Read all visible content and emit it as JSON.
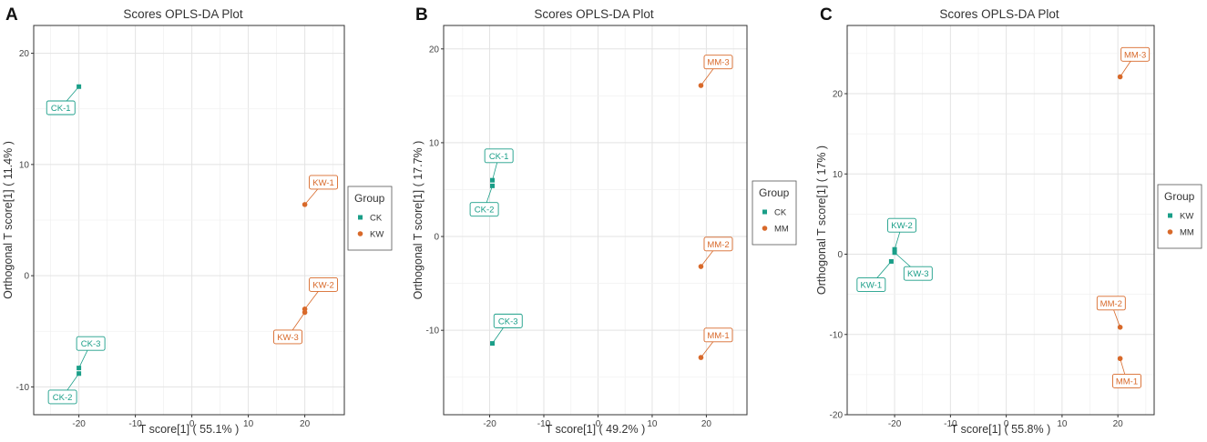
{
  "colors": {
    "CK": "#1a9e88",
    "KW_orange": "#d8692a",
    "MM": "#d8692a",
    "KW_teal": "#1a9e88",
    "grid": "#e6e6e6",
    "border": "#333333",
    "text": "#333333",
    "axis_text": "#444444"
  },
  "chart_data": [
    {
      "type": "scatter",
      "panel_label": "A",
      "title": "Scores OPLS-DA Plot",
      "xlabel": "T score[1] ( 55.1% )",
      "ylabel": "Orthogonal T score[1] ( 11.4% )",
      "xlim": [
        -28,
        27
      ],
      "ylim": [
        -12.5,
        22.5
      ],
      "xticks": [
        -20,
        -10,
        0,
        10,
        20
      ],
      "yticks": [
        -10,
        0,
        10,
        20
      ],
      "legend_title": "Group",
      "legend": [
        {
          "name": "CK",
          "color": "#1a9e88",
          "shape": "square"
        },
        {
          "name": "KW",
          "color": "#d8692a",
          "shape": "circle"
        }
      ],
      "points": [
        {
          "label": "CK-1",
          "group": "CK",
          "x": -20.0,
          "y": 17.0,
          "lx": -23.2,
          "ly": 15.1
        },
        {
          "label": "CK-2",
          "group": "CK",
          "x": -20.0,
          "y": -8.8,
          "lx": -22.9,
          "ly": -10.9
        },
        {
          "label": "CK-3",
          "group": "CK",
          "x": -20.0,
          "y": -8.3,
          "lx": -17.9,
          "ly": -6.1
        },
        {
          "label": "KW-1",
          "group": "KW",
          "x": 20.0,
          "y": 6.4,
          "lx": 23.3,
          "ly": 8.4
        },
        {
          "label": "KW-2",
          "group": "KW",
          "x": 20.0,
          "y": -3.0,
          "lx": 23.3,
          "ly": -0.8
        },
        {
          "label": "KW-3",
          "group": "KW",
          "x": 20.0,
          "y": -3.3,
          "lx": 17.0,
          "ly": -5.5
        }
      ]
    },
    {
      "type": "scatter",
      "panel_label": "B",
      "title": "Scores OPLS-DA Plot",
      "xlabel": "T score[1] ( 49.2% )",
      "ylabel": "Orthogonal T score[1] ( 17.7% )",
      "xlim": [
        -28.5,
        27.5
      ],
      "ylim": [
        -19,
        22.5
      ],
      "xticks": [
        -20,
        -10,
        0,
        10,
        20
      ],
      "yticks": [
        -10,
        0,
        10,
        20
      ],
      "legend_title": "Group",
      "legend": [
        {
          "name": "CK",
          "color": "#1a9e88",
          "shape": "square"
        },
        {
          "name": "MM",
          "color": "#d8692a",
          "shape": "circle"
        }
      ],
      "points": [
        {
          "label": "CK-1",
          "group": "CK",
          "x": -19.5,
          "y": 6.0,
          "lx": -18.3,
          "ly": 8.6
        },
        {
          "label": "CK-2",
          "group": "CK",
          "x": -19.5,
          "y": 5.4,
          "lx": -21.0,
          "ly": 2.9
        },
        {
          "label": "CK-3",
          "group": "CK",
          "x": -19.5,
          "y": -11.4,
          "lx": -16.6,
          "ly": -9.0
        },
        {
          "label": "MM-1",
          "group": "MM",
          "x": 19.0,
          "y": -12.9,
          "lx": 22.2,
          "ly": -10.5
        },
        {
          "label": "MM-2",
          "group": "MM",
          "x": 19.0,
          "y": -3.2,
          "lx": 22.2,
          "ly": -0.8
        },
        {
          "label": "MM-3",
          "group": "MM",
          "x": 19.0,
          "y": 16.1,
          "lx": 22.2,
          "ly": 18.6
        }
      ]
    },
    {
      "type": "scatter",
      "panel_label": "C",
      "title": "Scores OPLS-DA Plot",
      "xlabel": "T score[1] ( 55.8% )",
      "ylabel": "Orthogonal T score[1] ( 17% )",
      "xlim": [
        -28.5,
        26.5
      ],
      "ylim": [
        -20,
        28.5
      ],
      "xticks": [
        -20,
        -10,
        0,
        10,
        20
      ],
      "yticks": [
        -20,
        -10,
        0,
        10,
        20
      ],
      "legend_title": "Group",
      "legend": [
        {
          "name": "KW",
          "color": "#1a9e88",
          "shape": "square"
        },
        {
          "name": "MM",
          "color": "#d8692a",
          "shape": "circle"
        }
      ],
      "points": [
        {
          "label": "KW-1",
          "group": "KW",
          "x": -20.6,
          "y": -0.9,
          "lx": -24.2,
          "ly": -3.8
        },
        {
          "label": "KW-2",
          "group": "KW",
          "x": -20.0,
          "y": 0.6,
          "lx": -18.7,
          "ly": 3.6
        },
        {
          "label": "KW-3",
          "group": "KW",
          "x": -20.0,
          "y": 0.2,
          "lx": -15.8,
          "ly": -2.4
        },
        {
          "label": "MM-1",
          "group": "MM",
          "x": 20.4,
          "y": -13.0,
          "lx": 21.6,
          "ly": -15.8
        },
        {
          "label": "MM-2",
          "group": "MM",
          "x": 20.4,
          "y": -9.1,
          "lx": 18.8,
          "ly": -6.1
        },
        {
          "label": "MM-3",
          "group": "MM",
          "x": 20.4,
          "y": 22.1,
          "lx": 23.1,
          "ly": 24.9
        }
      ]
    }
  ]
}
